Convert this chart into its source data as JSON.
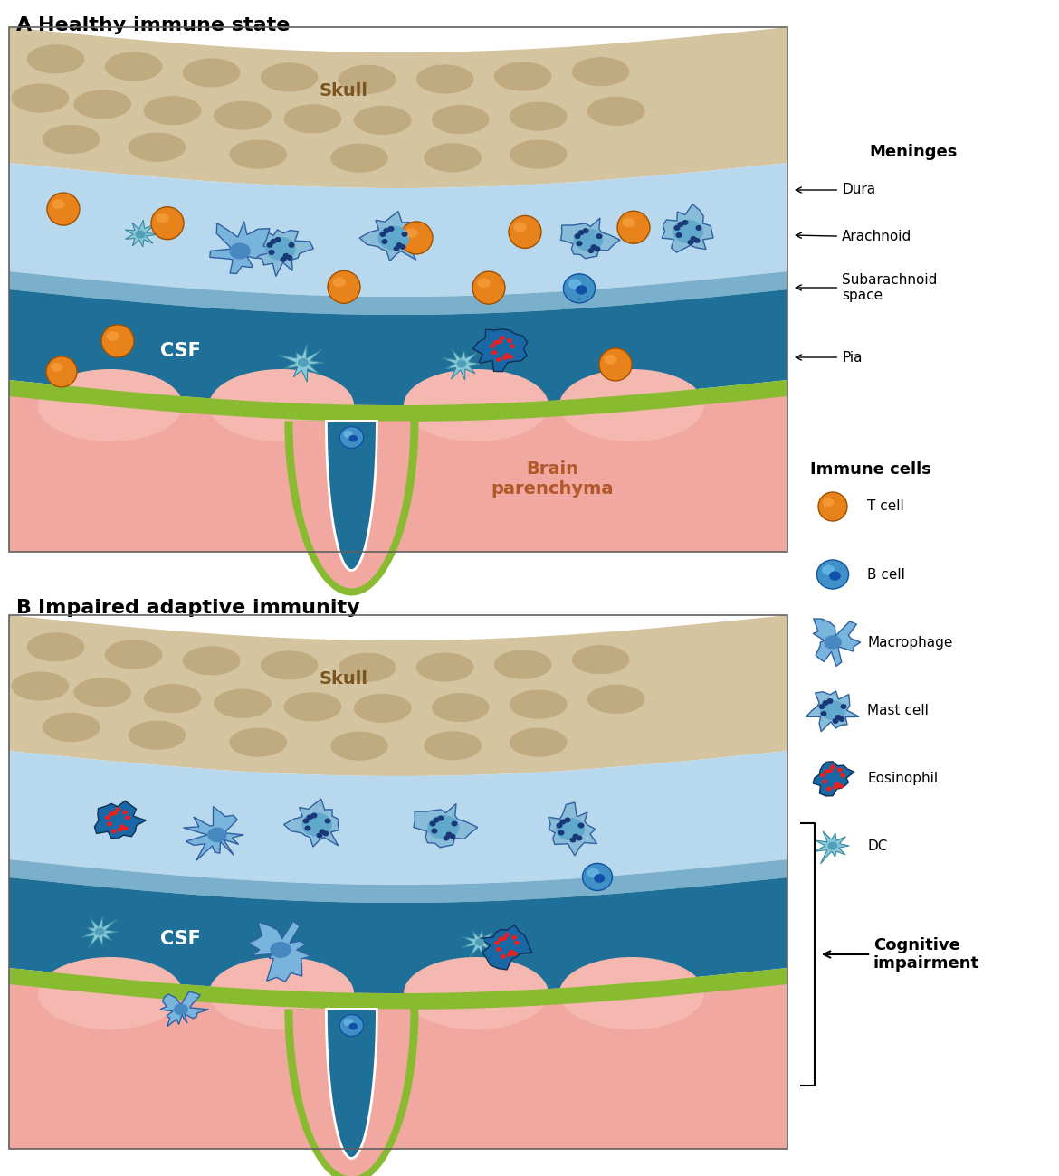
{
  "title_A": "A   Healthy immune state",
  "title_B": "B   Impaired adaptive immunity",
  "skull_color": "#d4c4a0",
  "skull_cell_color": "#c0aa80",
  "dura_color": "#b8d8ee",
  "arachnoid_color": "#7ab0cc",
  "subarachnoid_color": "#1e7098",
  "pia_color": "#88bb30",
  "brain_color": "#f0a8a0",
  "brain_dark": "#e89088",
  "t_cell_orange": "#e8821a",
  "t_cell_highlight": "#f5a040",
  "b_cell_blue": "#3a90d0",
  "b_cell_dark": "#1050a0",
  "macro_color": "#70b0d8",
  "mast_color": "#80b0d0",
  "mast_dot": "#184080",
  "eosin_color": "#1868a8",
  "dc_color": "#80c0cc",
  "red_dot": "#e82020",
  "white": "#ffffff",
  "black": "#000000",
  "cognitive_label": "Cognitive\nimpairment",
  "immune_cells_title": "Immune cells",
  "legend_items": [
    "T cell",
    "B cell",
    "Macrophage",
    "Mast cell",
    "Eosinophil",
    "DC"
  ]
}
